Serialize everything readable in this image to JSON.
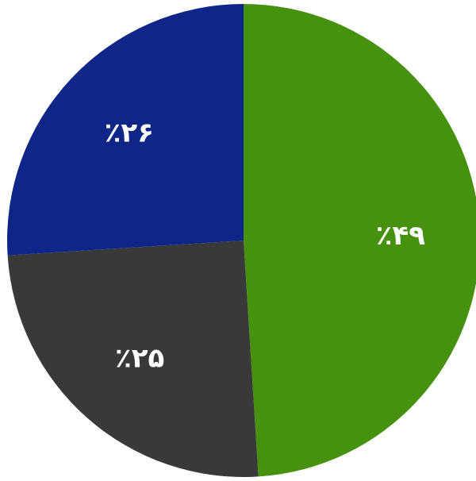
{
  "chart_data": {
    "type": "pie",
    "title": "",
    "start_angle_deg": 0,
    "direction": "clockwise",
    "slices": [
      {
        "value": 49,
        "label": "٪۴۹",
        "color": "#46920F"
      },
      {
        "value": 25,
        "label": "٪۲۵",
        "color": "#393939"
      },
      {
        "value": 26,
        "label": "٪۲۶",
        "color": "#0E2687"
      }
    ],
    "legend": "none"
  }
}
